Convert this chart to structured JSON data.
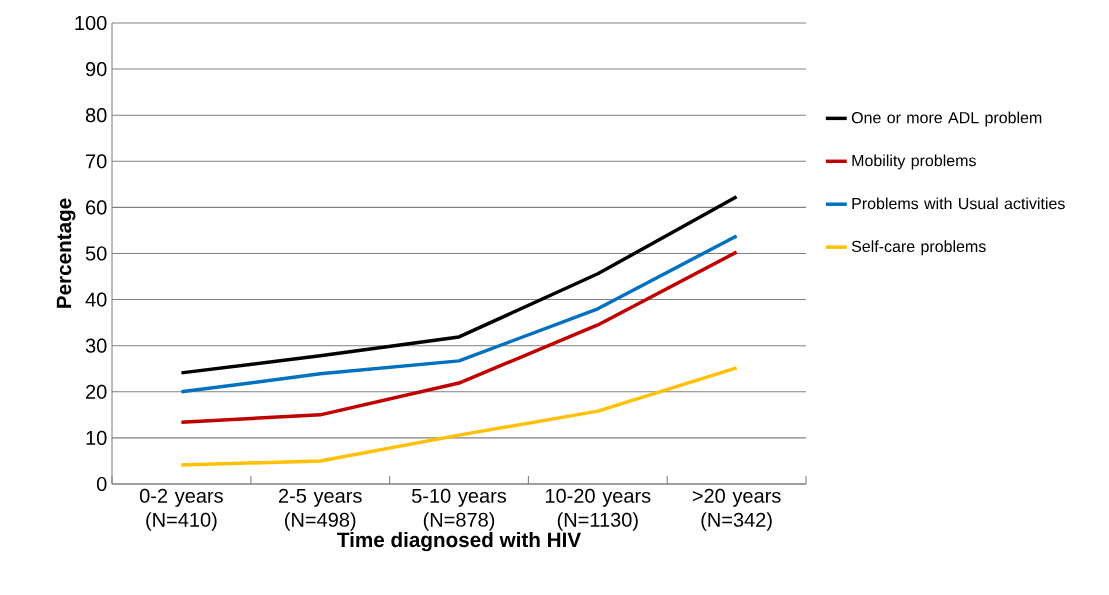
{
  "chart_data": {
    "type": "line",
    "xlabel": "Time diagnosed with HIV",
    "ylabel": "Percentage",
    "categories": [
      "0-2 years (N=410)",
      "2-5 years (N=498)",
      "5-10 years (N=878)",
      "10-20 years (N=1130)",
      ">20 years (N=342)"
    ],
    "series": [
      {
        "name": "One or more ADL problem",
        "color": "#000000",
        "values": [
          24.1,
          27.8,
          31.9,
          45.6,
          62.3
        ]
      },
      {
        "name": "Mobility problems",
        "color": "#c00000",
        "values": [
          13.4,
          15,
          21.9,
          34.5,
          50.3
        ]
      },
      {
        "name": "Problems with Usual activities",
        "color": "#0070c0",
        "values": [
          20,
          23.9,
          26.7,
          38,
          53.8
        ]
      },
      {
        "name": "Self-care problems",
        "color": "#ffc000",
        "values": [
          4.1,
          5,
          10.6,
          15.8,
          25.2
        ]
      }
    ],
    "ylim": [
      0,
      100
    ],
    "yticks": [
      0,
      10,
      20,
      30,
      40,
      50,
      60,
      70,
      80,
      90,
      100
    ],
    "grid": "y",
    "legend": "right",
    "marker": "none",
    "line_style": "solid"
  }
}
